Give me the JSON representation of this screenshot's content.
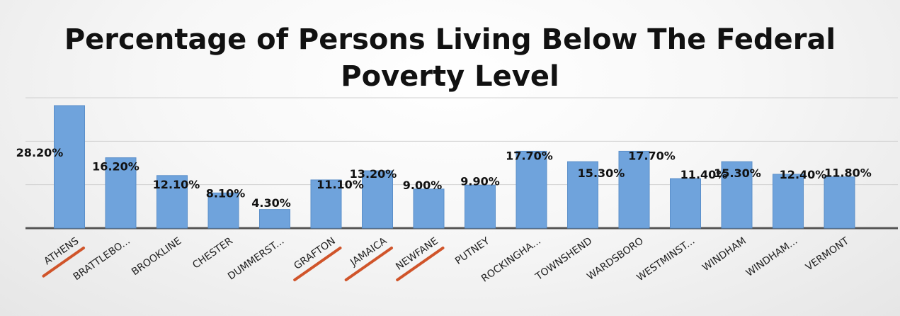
{
  "chart_data": {
    "type": "bar",
    "title": "Percentage of Persons Living Below The Federal Poverty Level",
    "xlabel": "",
    "ylabel": "",
    "ylim": [
      0,
      30
    ],
    "grid": true,
    "legend": "none",
    "categories": [
      "ATHENS",
      "BRATTLEBO...",
      "BROOKLINE",
      "CHESTER",
      "DUMMERST...",
      "GRAFTON",
      "JAMAICA",
      "NEWFANE",
      "PUTNEY",
      "ROCKINGHA...",
      "TOWNSHEND",
      "WARDSBORO",
      "WESTMINST...",
      "WINDHAM",
      "WINDHAM...",
      "VERMONT"
    ],
    "values": [
      28.2,
      16.2,
      12.1,
      8.1,
      4.3,
      11.1,
      13.2,
      9.0,
      9.9,
      17.7,
      15.3,
      17.7,
      11.4,
      15.3,
      12.4,
      11.8
    ],
    "data_labels": [
      "28.20%",
      "16.20%",
      "12.10%",
      "8.10%",
      "4.30%",
      "11.10%",
      "13.20%",
      "9.00%",
      "9.90%",
      "17.70%",
      "15.30%",
      "17.70%",
      "11.40%",
      "15.30%",
      "12.40%",
      "11.80%"
    ],
    "underlined_categories": [
      "ATHENS",
      "GRAFTON",
      "JAMAICA",
      "NEWFANE"
    ],
    "bar_color": "#6fa3dc",
    "underline_color": "#d0542a"
  }
}
